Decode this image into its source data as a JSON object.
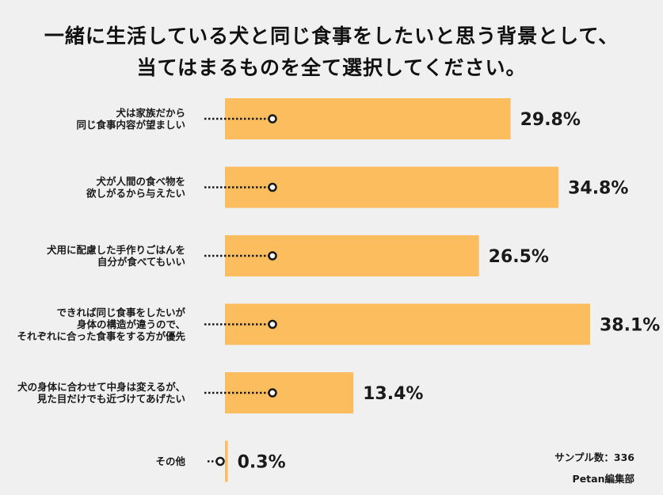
{
  "chart_data": {
    "type": "bar",
    "orientation": "horizontal",
    "title_lines": [
      "一緒に生活している犬と同じ食事をしたいと思う背景として、",
      "当てはまるものを全て選択してください。"
    ],
    "categories": [
      [
        "犬は家族だから",
        "同じ食事内容が望ましい"
      ],
      [
        "犬が人間の食べ物を",
        "欲しがるから与えたい"
      ],
      [
        "犬用に配慮した手作りごはんを",
        "自分が食べてもいい"
      ],
      [
        "できれば同じ食事をしたいが",
        "身体の構造が違うので、",
        "それぞれに合った食事をする方が優先"
      ],
      [
        "犬の身体に合わせて中身は変えるが、",
        "見た目だけでも近づけてあげたい"
      ],
      [
        "その他"
      ]
    ],
    "values": [
      29.8,
      34.8,
      26.5,
      38.1,
      13.4,
      0.3
    ],
    "value_labels": [
      "29.8%",
      "34.8%",
      "26.5%",
      "38.1%",
      "13.4%",
      "0.3%"
    ],
    "unit": "%",
    "xlim": [
      0,
      40
    ],
    "bar_color": "#fbbd5d",
    "grid": false,
    "legend": "none"
  },
  "footer": {
    "sample": "サンプル数：336",
    "publisher": "Petan編集部"
  }
}
